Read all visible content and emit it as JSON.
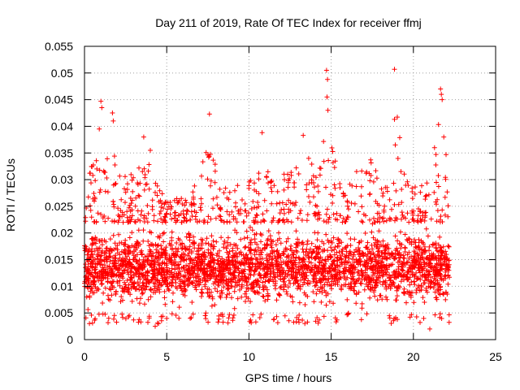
{
  "chart_data": {
    "type": "scatter",
    "title": "Day 211 of 2019, Rate Of TEC Index for receiver ffmj",
    "xlabel": "GPS time / hours",
    "ylabel": "ROTI / TECUs",
    "xlim": [
      0,
      25
    ],
    "ylim": [
      0,
      0.055
    ],
    "x_ticks": [
      "0",
      "5",
      "10",
      "15",
      "20",
      "25"
    ],
    "y_ticks": [
      "0",
      "0.005",
      "0.01",
      "0.015",
      "0.02",
      "0.025",
      "0.03",
      "0.035",
      "0.04",
      "0.045",
      "0.05",
      "0.055"
    ],
    "grid": true,
    "marker": "+",
    "point_color": "#ff0000",
    "series": [
      {
        "points_per_hour": 380,
        "x_range": [
          0,
          22.2
        ],
        "typical_range": [
          0.005,
          0.022
        ],
        "upper_envelope": [
          [
            0.0,
            0.031
          ],
          [
            0.5,
            0.036
          ],
          [
            1.0,
            0.045
          ],
          [
            1.3,
            0.036
          ],
          [
            1.7,
            0.043
          ],
          [
            2.0,
            0.033
          ],
          [
            2.5,
            0.033
          ],
          [
            3.0,
            0.034
          ],
          [
            3.6,
            0.038
          ],
          [
            4.0,
            0.036
          ],
          [
            4.5,
            0.031
          ],
          [
            5.0,
            0.027
          ],
          [
            6.0,
            0.028
          ],
          [
            7.0,
            0.034
          ],
          [
            7.6,
            0.042
          ],
          [
            8.0,
            0.035
          ],
          [
            9.0,
            0.032
          ],
          [
            9.7,
            0.034
          ],
          [
            10.5,
            0.033
          ],
          [
            10.8,
            0.039
          ],
          [
            11.5,
            0.032
          ],
          [
            12.0,
            0.033
          ],
          [
            12.8,
            0.036
          ],
          [
            13.2,
            0.037
          ],
          [
            13.8,
            0.038
          ],
          [
            14.2,
            0.034
          ],
          [
            14.7,
            0.051
          ],
          [
            15.2,
            0.037
          ],
          [
            15.8,
            0.033
          ],
          [
            16.5,
            0.034
          ],
          [
            17.3,
            0.038
          ],
          [
            17.8,
            0.034
          ],
          [
            18.5,
            0.03
          ],
          [
            18.9,
            0.051
          ],
          [
            19.5,
            0.032
          ],
          [
            20.5,
            0.031
          ],
          [
            21.0,
            0.035
          ],
          [
            21.6,
            0.047
          ],
          [
            22.0,
            0.038
          ],
          [
            22.2,
            0.036
          ]
        ],
        "outliers": [
          [
            14.72,
            0.0505
          ],
          [
            14.78,
            0.0488
          ],
          [
            14.75,
            0.0455
          ],
          [
            14.8,
            0.043
          ],
          [
            18.85,
            0.0507
          ],
          [
            18.85,
            0.0413
          ],
          [
            18.9,
            0.0365
          ],
          [
            21.65,
            0.047
          ],
          [
            21.7,
            0.046
          ],
          [
            21.75,
            0.045
          ],
          [
            1.0,
            0.0447
          ],
          [
            1.05,
            0.0435
          ],
          [
            1.7,
            0.0425
          ],
          [
            1.75,
            0.041
          ],
          [
            7.6,
            0.0423
          ],
          [
            10.8,
            0.0388
          ],
          [
            13.3,
            0.0383
          ],
          [
            0.9,
            0.0395
          ],
          [
            3.6,
            0.038
          ],
          [
            21.85,
            0.038
          ],
          [
            4.0,
            0.0355
          ]
        ],
        "low_outliers": [
          [
            4.3,
            0.0025
          ],
          [
            4.5,
            0.003
          ],
          [
            21.0,
            0.002
          ],
          [
            0.3,
            0.003
          ],
          [
            13.4,
            0.003
          ]
        ]
      }
    ]
  }
}
